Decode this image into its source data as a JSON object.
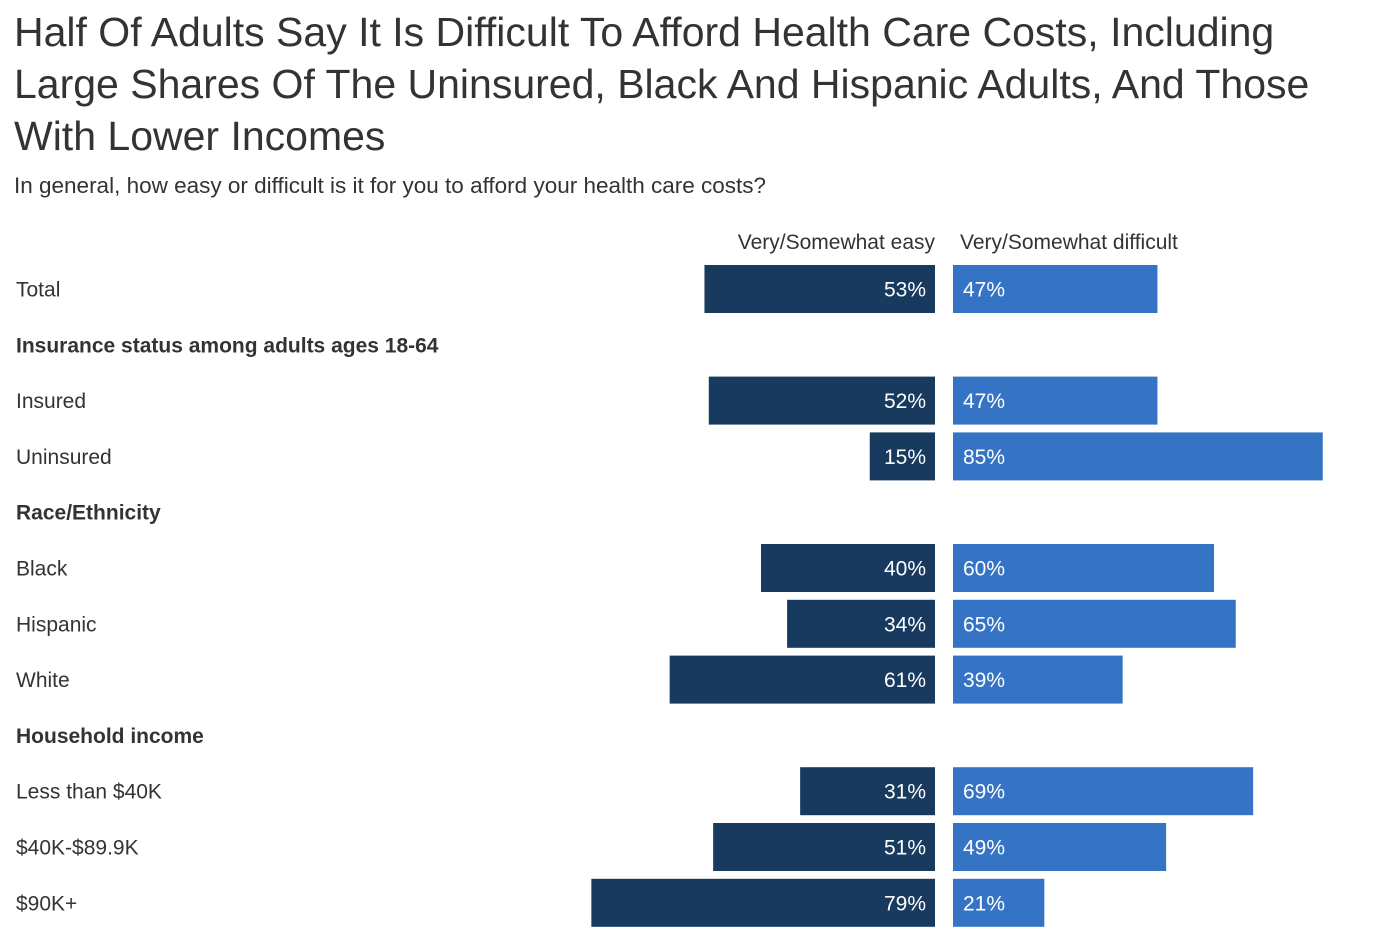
{
  "title": "Half Of Adults Say It Is Difficult To Afford Health Care Costs, Including Large Shares Of The Uninsured, Black And Hispanic Adults, And Those With Lower Incomes",
  "subtitle": "In general, how easy or difficult is it for you to afford your health care costs?",
  "colors": {
    "easy": "#183a5e",
    "difficult": "#3574c4",
    "text": "#333333"
  },
  "chart_data": {
    "type": "bar",
    "orientation": "horizontal-diverging",
    "title": "Half Of Adults Say It Is Difficult To Afford Health Care Costs, Including Large Shares Of The Uninsured, Black And Hispanic Adults, And Those With Lower Incomes",
    "subtitle": "In general, how easy or difficult is it for you to afford your health care costs?",
    "unit": "%",
    "series": [
      {
        "name": "Very/Somewhat easy",
        "key": "easy"
      },
      {
        "name": "Very/Somewhat difficult",
        "key": "difficult"
      }
    ],
    "rows": [
      {
        "kind": "category",
        "label": "Total",
        "easy": 53,
        "difficult": 47
      },
      {
        "kind": "group",
        "label": "Insurance status among adults ages 18-64"
      },
      {
        "kind": "category",
        "label": "Insured",
        "easy": 52,
        "difficult": 47
      },
      {
        "kind": "category",
        "label": "Uninsured",
        "easy": 15,
        "difficult": 85
      },
      {
        "kind": "group",
        "label": "Race/Ethnicity"
      },
      {
        "kind": "category",
        "label": "Black",
        "easy": 40,
        "difficult": 60
      },
      {
        "kind": "category",
        "label": "Hispanic",
        "easy": 34,
        "difficult": 65
      },
      {
        "kind": "category",
        "label": "White",
        "easy": 61,
        "difficult": 39
      },
      {
        "kind": "group",
        "label": "Household income"
      },
      {
        "kind": "category",
        "label": "Less than $40K",
        "easy": 31,
        "difficult": 69
      },
      {
        "kind": "category",
        "label": "$40K-$89.9K",
        "easy": 51,
        "difficult": 49
      },
      {
        "kind": "category",
        "label": "$90K+",
        "easy": 79,
        "difficult": 21
      }
    ]
  }
}
